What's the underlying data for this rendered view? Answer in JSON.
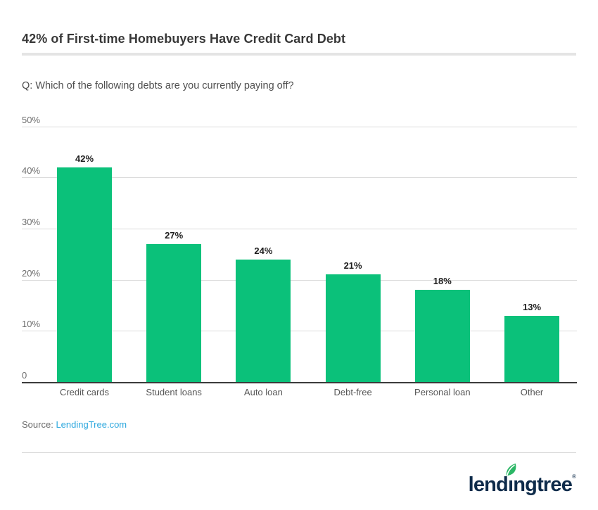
{
  "page": {
    "title": "42% of First-time Homebuyers Have Credit Card Debt",
    "subtitle": "Q: Which of the following debts are you currently paying off?"
  },
  "chart_data": {
    "type": "bar",
    "title": "42% of First-time Homebuyers Have Credit Card Debt",
    "question": "Q: Which of the following debts are you currently paying off?",
    "categories": [
      "Credit cards",
      "Student loans",
      "Auto loan",
      "Debt-free",
      "Personal loan",
      "Other"
    ],
    "values": [
      42,
      27,
      24,
      21,
      18,
      13
    ],
    "value_labels": [
      "42%",
      "27%",
      "24%",
      "21%",
      "18%",
      "13%"
    ],
    "yticks": [
      {
        "value": 50,
        "label": "50%"
      },
      {
        "value": 40,
        "label": "40%"
      },
      {
        "value": 30,
        "label": "30%"
      },
      {
        "value": 20,
        "label": "20%"
      },
      {
        "value": 10,
        "label": "10%"
      },
      {
        "value": 0,
        "label": "0"
      }
    ],
    "ylim": [
      0,
      50
    ],
    "grid": true,
    "legend": "none",
    "bar_color": "#0bc17a"
  },
  "source": {
    "label": "Source:",
    "link_text": "LendingTree.com"
  },
  "logo": {
    "wordmark_left": "lend",
    "wordmark_i": "ı",
    "wordmark_right": "ngtree",
    "registered": "®",
    "leaf_color": "#2cb766",
    "text_color": "#0e2b4a"
  },
  "colors": {
    "bar_green": "#0bc17a",
    "link_blue": "#2ba7de",
    "logo_navy": "#0e2b4a",
    "leaf_green": "#2cb766",
    "gridline_gray": "#dadada",
    "axis_dark": "#3b3b3b"
  }
}
